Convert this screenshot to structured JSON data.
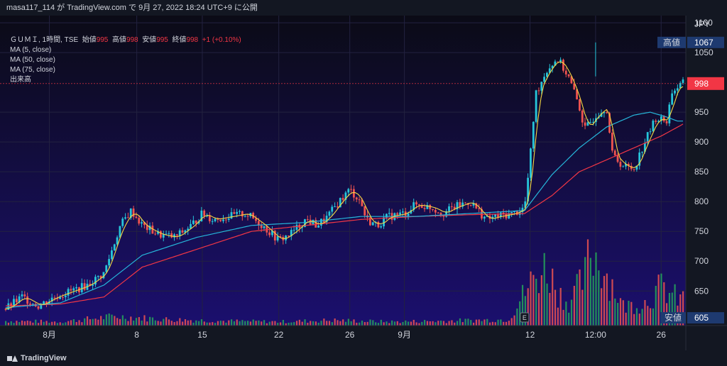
{
  "header": {
    "caption": "masa117_114 が TradingView.com で 9月 27, 2022 18:24 UTC+9 に公開"
  },
  "legend": {
    "symbol": "ＧＵＭＩ, 1時間, TSE",
    "open_label": "始値",
    "open_value": "995",
    "high_label": "高値",
    "high_value": "998",
    "low_label": "安値",
    "low_value": "995",
    "close_label": "終値",
    "close_value": "998",
    "change": "+1 (+0.10%)",
    "ma5": "MA (5, close)",
    "ma50": "MA (50, close)",
    "ma75": "MA (75, close)",
    "volume": "出来高"
  },
  "footer": {
    "brand": "TradingView"
  },
  "chart_data": {
    "type": "candlestick",
    "currency": "JPY",
    "y_ticks": [
      1100,
      1050,
      950,
      900,
      850,
      800,
      750,
      700,
      650
    ],
    "ylim": [
      592,
      1112
    ],
    "x_ticks": [
      "8月",
      "8",
      "15",
      "22",
      "26",
      "9月",
      "12",
      "12:00",
      "26"
    ],
    "x_tick_positions": [
      8,
      24,
      36,
      50,
      63,
      73,
      96,
      108,
      120
    ],
    "x_range": [
      0,
      124
    ],
    "markers": {
      "high_label": "高値",
      "high_value": 1067,
      "low_label": "安値",
      "low_value": 605,
      "last_value": 998
    },
    "close_anchors": [
      [
        0,
        620
      ],
      [
        3,
        640
      ],
      [
        6,
        625
      ],
      [
        9,
        640
      ],
      [
        12,
        650
      ],
      [
        15,
        660
      ],
      [
        18,
        680
      ],
      [
        21,
        760
      ],
      [
        23,
        785
      ],
      [
        25,
        760
      ],
      [
        28,
        745
      ],
      [
        31,
        740
      ],
      [
        34,
        760
      ],
      [
        36,
        780
      ],
      [
        38,
        770
      ],
      [
        41,
        775
      ],
      [
        44,
        780
      ],
      [
        47,
        760
      ],
      [
        50,
        735
      ],
      [
        52,
        745
      ],
      [
        55,
        770
      ],
      [
        57,
        760
      ],
      [
        59,
        775
      ],
      [
        61,
        800
      ],
      [
        63,
        820
      ],
      [
        65,
        800
      ],
      [
        66,
        770
      ],
      [
        68,
        760
      ],
      [
        70,
        775
      ],
      [
        73,
        780
      ],
      [
        75,
        795
      ],
      [
        78,
        790
      ],
      [
        80,
        780
      ],
      [
        82,
        790
      ],
      [
        85,
        800
      ],
      [
        88,
        770
      ],
      [
        90,
        775
      ],
      [
        93,
        780
      ],
      [
        95,
        790
      ],
      [
        96,
        870
      ],
      [
        97,
        980
      ],
      [
        99,
        1020
      ],
      [
        101,
        1040
      ],
      [
        103,
        1010
      ],
      [
        105,
        960
      ],
      [
        106,
        920
      ],
      [
        108,
        945
      ],
      [
        110,
        960
      ],
      [
        111,
        880
      ],
      [
        113,
        860
      ],
      [
        115,
        855
      ],
      [
        117,
        900
      ],
      [
        119,
        940
      ],
      [
        121,
        935
      ],
      [
        122,
        985
      ],
      [
        124,
        998
      ]
    ],
    "ma50_anchors": [
      [
        0,
        622
      ],
      [
        10,
        630
      ],
      [
        18,
        660
      ],
      [
        25,
        710
      ],
      [
        35,
        740
      ],
      [
        45,
        760
      ],
      [
        55,
        765
      ],
      [
        65,
        775
      ],
      [
        75,
        775
      ],
      [
        85,
        780
      ],
      [
        95,
        785
      ],
      [
        100,
        845
      ],
      [
        105,
        890
      ],
      [
        110,
        925
      ],
      [
        115,
        945
      ],
      [
        118,
        950
      ],
      [
        121,
        942
      ],
      [
        123,
        935
      ]
    ],
    "ma75_anchors": [
      [
        0,
        625
      ],
      [
        10,
        628
      ],
      [
        18,
        640
      ],
      [
        25,
        690
      ],
      [
        35,
        720
      ],
      [
        45,
        750
      ],
      [
        55,
        760
      ],
      [
        65,
        770
      ],
      [
        75,
        775
      ],
      [
        85,
        778
      ],
      [
        95,
        780
      ],
      [
        100,
        810
      ],
      [
        105,
        850
      ],
      [
        110,
        870
      ],
      [
        115,
        890
      ],
      [
        120,
        910
      ],
      [
        124,
        930
      ]
    ],
    "volume_anchors": [
      [
        0,
        0.06
      ],
      [
        10,
        0.05
      ],
      [
        20,
        0.12
      ],
      [
        30,
        0.08
      ],
      [
        40,
        0.06
      ],
      [
        50,
        0.05
      ],
      [
        60,
        0.07
      ],
      [
        70,
        0.05
      ],
      [
        80,
        0.06
      ],
      [
        92,
        0.08
      ],
      [
        96,
        0.55
      ],
      [
        99,
        0.78
      ],
      [
        101,
        0.45
      ],
      [
        103,
        0.3
      ],
      [
        106,
        0.62
      ],
      [
        107,
        1.0
      ],
      [
        109,
        0.8
      ],
      [
        111,
        0.55
      ],
      [
        113,
        0.25
      ],
      [
        117,
        0.3
      ],
      [
        120,
        0.5
      ],
      [
        123,
        0.35
      ]
    ]
  }
}
